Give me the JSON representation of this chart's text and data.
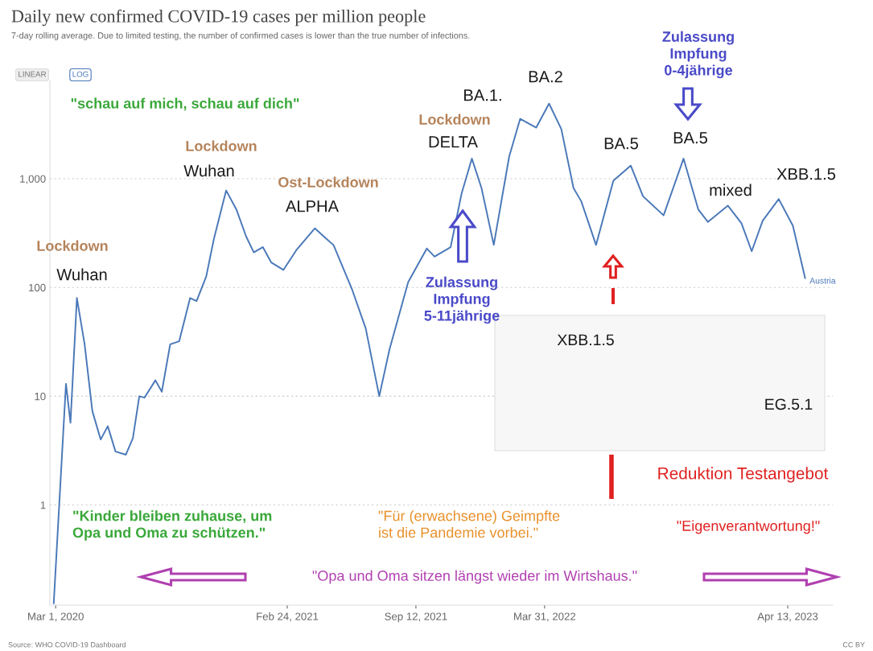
{
  "chart_data": {
    "type": "line",
    "title": "Daily new confirmed COVID-19 cases per million people",
    "subtitle": "7-day rolling average. Due to limited testing, the number of confirmed cases is lower than the true number of infections.",
    "x": [
      "2020-02-27",
      "2020-03-17",
      "2020-03-24",
      "2020-04-03",
      "2020-04-15",
      "2020-04-27",
      "2020-05-10",
      "2020-05-21",
      "2020-06-02",
      "2020-06-18",
      "2020-06-29",
      "2020-07-09",
      "2020-07-17",
      "2020-08-03",
      "2020-08-13",
      "2020-08-26",
      "2020-09-09",
      "2020-09-26",
      "2020-10-06",
      "2020-10-21",
      "2020-11-02",
      "2020-11-21",
      "2020-12-07",
      "2020-12-22",
      "2021-01-03",
      "2021-01-17",
      "2021-01-30",
      "2021-02-18",
      "2021-03-10",
      "2021-04-08",
      "2021-04-23",
      "2021-05-07",
      "2021-06-05",
      "2021-06-26",
      "2021-07-17",
      "2021-08-02",
      "2021-08-31",
      "2021-09-29",
      "2021-10-11",
      "2021-11-05",
      "2021-11-22",
      "2021-12-08",
      "2021-12-23",
      "2022-01-11",
      "2022-02-04",
      "2022-02-21",
      "2022-03-18",
      "2022-04-07",
      "2022-04-26",
      "2022-05-15",
      "2022-05-27",
      "2022-06-19",
      "2022-07-16",
      "2022-08-12",
      "2022-08-31",
      "2022-10-02",
      "2022-11-02",
      "2022-11-25",
      "2022-12-10",
      "2023-01-10",
      "2023-01-31",
      "2023-02-16",
      "2023-03-05",
      "2023-03-30",
      "2023-04-21",
      "2023-05-10"
    ],
    "series": [
      {
        "name": "Austria",
        "color": "#4a78b8",
        "values": [
          0.125,
          13,
          5.7,
          80,
          30,
          7.3,
          4.0,
          5.3,
          3.1,
          2.9,
          4.1,
          10,
          9.7,
          14,
          11,
          30,
          32,
          80,
          75,
          126,
          280,
          780,
          520,
          295,
          210,
          235,
          170,
          145,
          220,
          350,
          290,
          245,
          95,
          42,
          10,
          27,
          112,
          228,
          192,
          235,
          730,
          1530,
          820,
          246,
          1600,
          3550,
          2950,
          4900,
          2860,
          820,
          620,
          246,
          960,
          1320,
          690,
          460,
          1530,
          520,
          400,
          565,
          390,
          215,
          410,
          650,
          370,
          122
        ]
      }
    ],
    "log": "y",
    "xlim": [
      "2020-02-21",
      "2023-06-22"
    ],
    "ylim": [
      0.12,
      8000
    ],
    "xticks": [
      {
        "value": "2020-03-01",
        "label": "Mar 1, 2020"
      },
      {
        "value": "2021-02-24",
        "label": "Feb 24, 2021"
      },
      {
        "value": "2021-09-12",
        "label": "Sep 12, 2021"
      },
      {
        "value": "2022-03-31",
        "label": "Mar 31, 2022"
      },
      {
        "value": "2023-04-13",
        "label": "Apr 13, 2023"
      }
    ],
    "yticks": [
      1,
      10,
      100,
      {
        "value": 1000,
        "label": "1,000"
      }
    ],
    "grid": "y",
    "ref_lines": [
      {
        "axis": "x",
        "value": "2022-07-13",
        "label": "Reduktion Testangebot",
        "color": "#e02020"
      }
    ],
    "annotations": [
      "LINEAR",
      "LOG",
      "\"schau auf mich, schau auf dich\"",
      "Lockdown",
      "Wuhan",
      "Lockdown",
      "Wuhan",
      "Ost-Lockdown",
      "ALPHA",
      "Lockdown",
      "DELTA",
      "BA.1.",
      "BA.2",
      "Zulassung\nImpfung\n0-4jährige",
      "BA.5",
      "BA.5",
      "mixed",
      "XBB.1.5",
      "Zulassung\nImpfung\n5-11jährige",
      "XBB.1.5",
      "EG.5.1",
      "\"Kinder bleiben zuhause, um\nOpa und Oma zu schützen.\"",
      "\"Für (erwachsene) Geimpfte\nist die Pandemie vorbei.\"",
      "\"Eigenverantwortung!\"",
      "\"Opa und Oma sitzen längst wieder im Wirtshaus.\"",
      "Source: WHO COVID-19 Dashboard",
      "CC BY"
    ]
  }
}
